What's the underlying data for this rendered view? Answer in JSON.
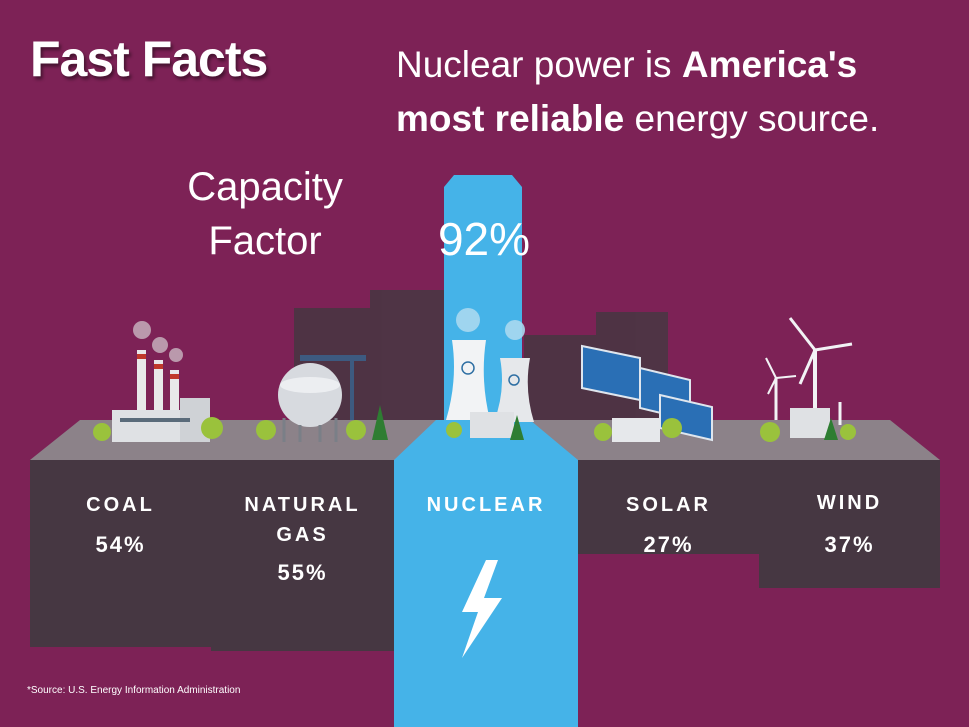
{
  "header": {
    "title": "Fast Facts",
    "headline_part1": "Nuclear power is ",
    "headline_bold1": "America's",
    "headline_bold2": "most reliable",
    "headline_part2": " energy source."
  },
  "chart_data": {
    "type": "bar",
    "title": "Capacity Factor",
    "ylabel": "Capacity Factor (%)",
    "categories": [
      "COAL",
      "NATURAL GAS",
      "NUCLEAR",
      "SOLAR",
      "WIND"
    ],
    "values": [
      54,
      55,
      92,
      27,
      37
    ],
    "value_labels": [
      "54%",
      "55%",
      "92%",
      "27%",
      "37%"
    ],
    "highlight": "NUCLEAR",
    "ylim": [
      0,
      100
    ]
  },
  "footer": {
    "source": "*Source: U.S. Energy Information Administration"
  },
  "colors": {
    "background": "#7d2256",
    "bar": "#463742",
    "highlight": "#45b3e8",
    "text": "#ffffff"
  },
  "icons": [
    "coal-plant-icon",
    "gas-tank-icon",
    "nuclear-plant-icon",
    "solar-panel-icon",
    "wind-turbine-icon",
    "lightning-bolt-icon"
  ]
}
